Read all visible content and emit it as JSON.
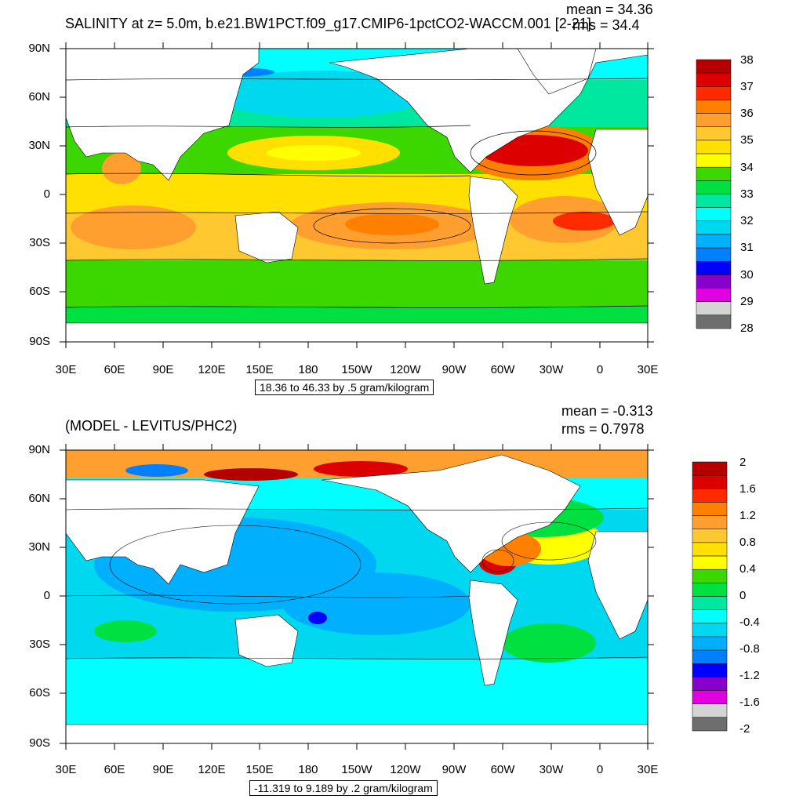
{
  "panels": [
    {
      "title": "SALINITY at z=   5.0m, b.e21.BW1PCT.f09_g17.CMIP6-1pctCO2-WACCM.001 [2-21]",
      "mean": "mean = 34.36",
      "rms": "rms = 34.4",
      "contour_info": "18.36 to 46.33 by .5 gram/kilogram",
      "lat_labels": [
        "90N",
        "60N",
        "30N",
        "0",
        "30S",
        "60S",
        "90S"
      ],
      "lon_labels": [
        "30E",
        "60E",
        "90E",
        "120E",
        "150E",
        "180",
        "150W",
        "120W",
        "90W",
        "60W",
        "30W",
        "0",
        "30E"
      ],
      "colorbar": {
        "labels": [
          "38",
          "37",
          "36",
          "35",
          "34",
          "33",
          "32",
          "31",
          "30",
          "29",
          "28"
        ],
        "colors": [
          "#b40000",
          "#dd0000",
          "#ff2a00",
          "#ff7f00",
          "#ff9f30",
          "#ffc830",
          "#ffe000",
          "#ffff00",
          "#3cd700",
          "#00e040",
          "#00e8a0",
          "#00ffff",
          "#00d8f0",
          "#00b0ff",
          "#0080ff",
          "#0000ff",
          "#8800cc",
          "#e000e0",
          "#d4d4d4",
          "#6e6e6e"
        ]
      }
    },
    {
      "title": "(MODEL - LEVITUS/PHC2)",
      "mean": "mean = -0.313",
      "rms": "rms = 0.7978",
      "contour_info": "-11.319 to 9.189 by .2 gram/kilogram",
      "lat_labels": [
        "90N",
        "60N",
        "30N",
        "0",
        "30S",
        "60S",
        "90S"
      ],
      "lon_labels": [
        "30E",
        "60E",
        "90E",
        "120E",
        "150E",
        "180",
        "150W",
        "120W",
        "90W",
        "60W",
        "30W",
        "0",
        "30E"
      ],
      "colorbar": {
        "labels": [
          "2",
          "1.6",
          "1.2",
          "0.8",
          "0.4",
          "0",
          "-0.4",
          "-0.8",
          "-1.2",
          "-1.6",
          "-2"
        ],
        "colors": [
          "#b40000",
          "#dd0000",
          "#ff2a00",
          "#ff7f00",
          "#ff9f30",
          "#ffc830",
          "#ffe000",
          "#ffff00",
          "#3cd700",
          "#00e040",
          "#00e8a0",
          "#00ffff",
          "#00d8f0",
          "#00b0ff",
          "#0080ff",
          "#0000ff",
          "#8800cc",
          "#e000e0",
          "#d4d4d4",
          "#6e6e6e"
        ]
      }
    }
  ]
}
